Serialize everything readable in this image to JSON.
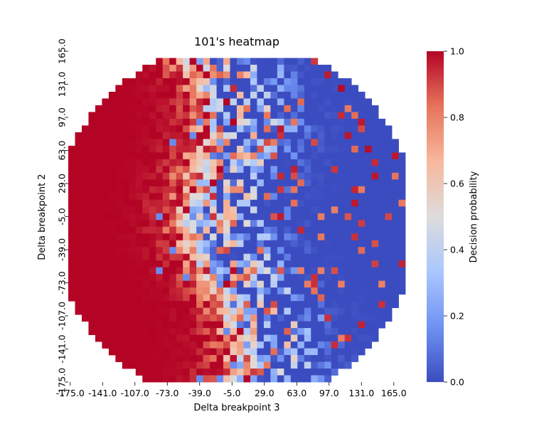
{
  "chart_data": {
    "type": "heatmap",
    "title": "101's heatmap",
    "xlabel": "Delta breakpoint 3",
    "ylabel": "Delta breakpoint 2",
    "x_tick_labels": [
      "-175.0",
      "-141.0",
      "-107.0",
      "-73.0",
      "-39.0",
      "-5.0",
      "29.0",
      "63.0",
      "97.0",
      "131.0",
      "165.0"
    ],
    "y_tick_labels": [
      "165.0",
      "131.0",
      "97.0",
      "63.0",
      "29.0",
      "-5.0",
      "-39.0",
      "-73.0",
      "-107.0",
      "-141.0",
      "-175.0"
    ],
    "xlim": [
      -175,
      175
    ],
    "ylim": [
      -175,
      165
    ],
    "grid_step": 7,
    "colorbar": {
      "label": "Decision probability",
      "range": [
        0.0,
        1.0
      ],
      "tick_labels": [
        "0.0",
        "0.2",
        "0.4",
        "0.6",
        "0.8",
        "1.0"
      ],
      "colormap": "coolwarm"
    },
    "colormap_stops": [
      "#3b4cc0",
      "#6f92f3",
      "#aac7fd",
      "#dddcdc",
      "#f7b89c",
      "#e7745b",
      "#b40426"
    ],
    "regions": {
      "left_high_region": "Decision probability ~1.0 (red) for Delta breakpoint 3 below about -40",
      "right_low_region": "Decision probability ~0.0 (blue) for Delta breakpoint 3 above about 10",
      "boundary": "Mixed noisy values between about -40 and 100 along Delta breakpoint 3"
    }
  }
}
